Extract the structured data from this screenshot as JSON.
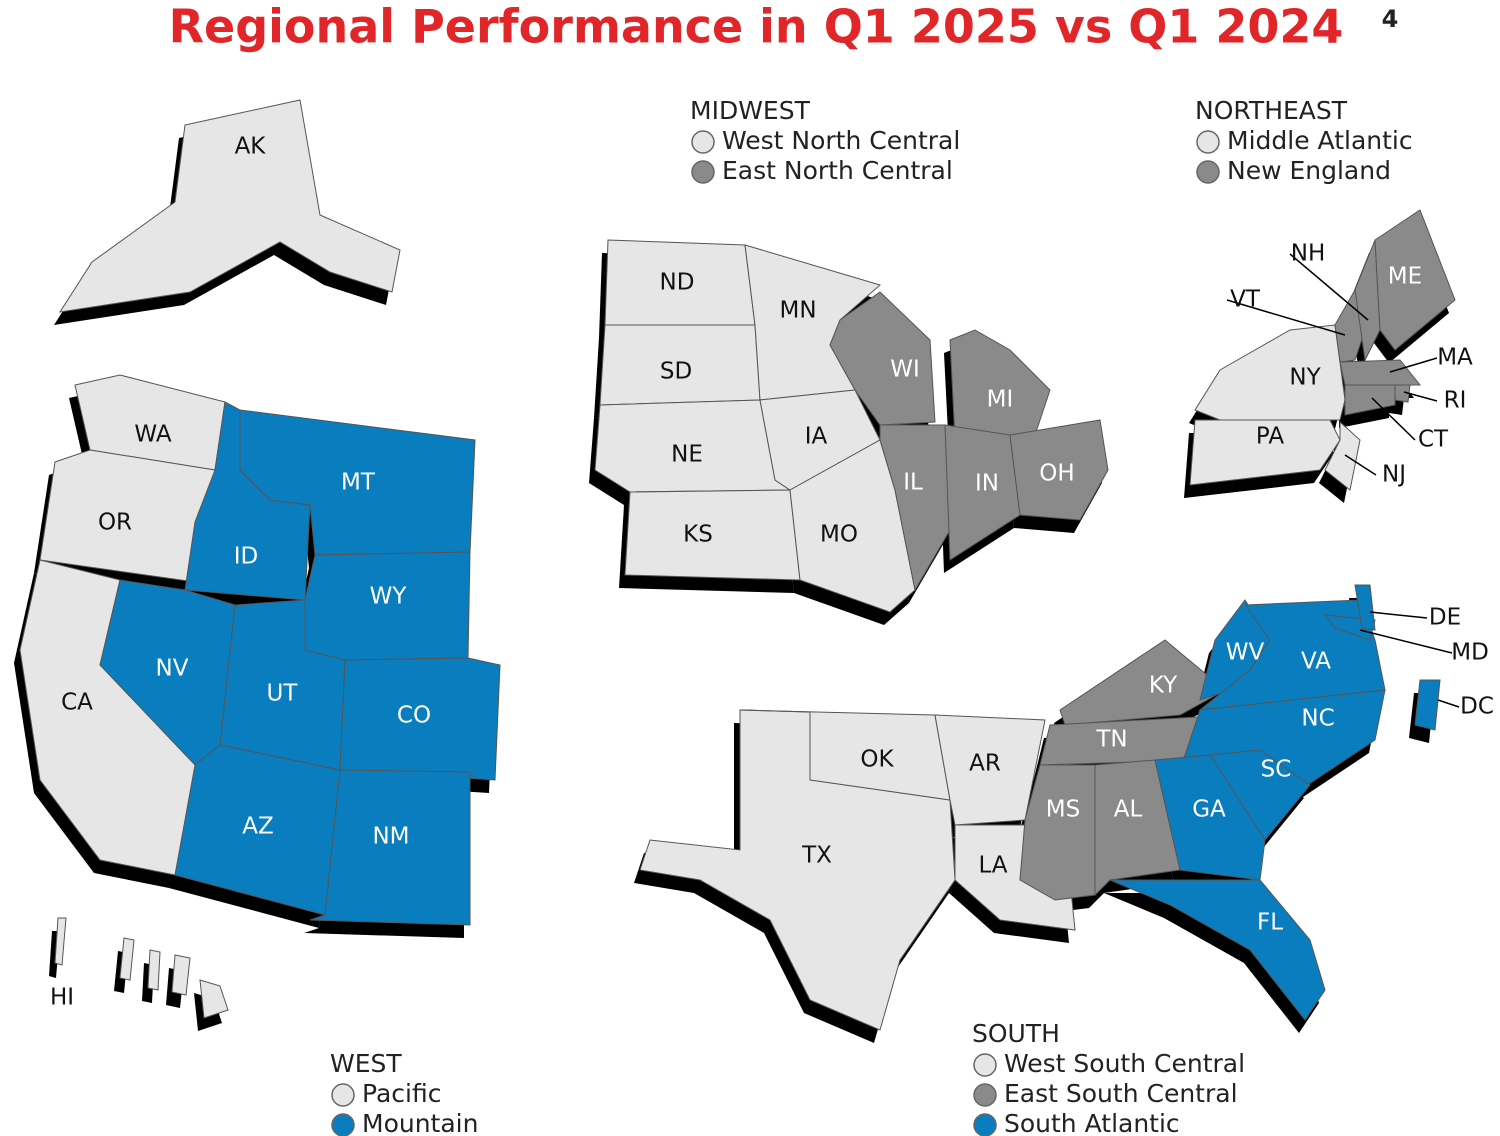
{
  "title": "Regional Performance in Q1 2025 vs Q1 2024",
  "title_note": "4",
  "regions": [
    {
      "name": "WEST",
      "divisions": [
        {
          "name": "Pacific",
          "color": "#e6e6e6",
          "states": [
            "AK",
            "HI",
            "WA",
            "OR",
            "CA"
          ]
        },
        {
          "name": "Mountain",
          "color": "#0a7dbf",
          "states": [
            "ID",
            "MT",
            "WY",
            "NV",
            "UT",
            "CO",
            "AZ",
            "NM"
          ]
        }
      ]
    },
    {
      "name": "MIDWEST",
      "divisions": [
        {
          "name": "West North Central",
          "color": "#e6e6e6",
          "states": [
            "ND",
            "SD",
            "NE",
            "KS",
            "MN",
            "IA",
            "MO"
          ]
        },
        {
          "name": "East North Central",
          "color": "#8a8a8a",
          "states": [
            "WI",
            "MI",
            "IL",
            "IN",
            "OH"
          ]
        }
      ]
    },
    {
      "name": "NORTHEAST",
      "divisions": [
        {
          "name": "Middle Atlantic",
          "color": "#e6e6e6",
          "states": [
            "NY",
            "PA",
            "NJ"
          ]
        },
        {
          "name": "New England",
          "color": "#8a8a8a",
          "states": [
            "VT",
            "NH",
            "ME",
            "MA",
            "RI",
            "CT"
          ]
        }
      ]
    },
    {
      "name": "SOUTH",
      "divisions": [
        {
          "name": "West South Central",
          "color": "#e6e6e6",
          "states": [
            "TX",
            "OK",
            "AR",
            "LA"
          ]
        },
        {
          "name": "East South Central",
          "color": "#8a8a8a",
          "states": [
            "KY",
            "TN",
            "MS",
            "AL"
          ]
        },
        {
          "name": "South Atlantic",
          "color": "#0a7dbf",
          "states": [
            "WV",
            "VA",
            "MD",
            "DE",
            "DC",
            "NC",
            "SC",
            "GA",
            "FL"
          ]
        }
      ]
    }
  ]
}
